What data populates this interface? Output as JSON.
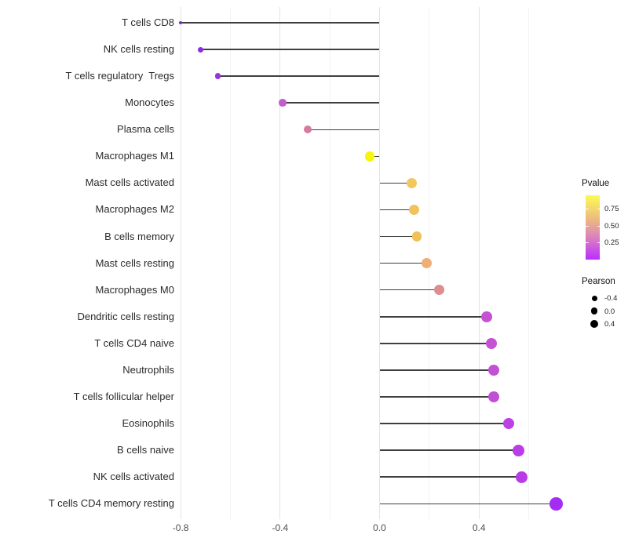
{
  "chart_data": {
    "type": "lollipop",
    "orientation": "horizontal",
    "title": "",
    "xlabel": "",
    "ylabel": "",
    "baseline": 0.0,
    "xlim": [
      -0.87,
      0.79
    ],
    "grid": "vertical-only",
    "x_axis": {
      "ticks": [
        -0.8,
        -0.4,
        0.0,
        0.4
      ],
      "tick_labels": [
        "-0.8",
        "-0.4",
        "0.0",
        "0.4"
      ],
      "minor_ticks": [
        -0.6,
        -0.2,
        0.2,
        0.6
      ]
    },
    "points": [
      {
        "label": "T cells CD8",
        "pearson": -0.8,
        "dot_color": "#7f25df",
        "dot_size": 4.5
      },
      {
        "label": "NK cells resting",
        "pearson": -0.72,
        "dot_color": "#8c2ce2",
        "dot_size": 7
      },
      {
        "label": "T cells regulatory  Tregs",
        "pearson": -0.65,
        "dot_color": "#9734dd",
        "dot_size": 7.5
      },
      {
        "label": "Monocytes",
        "pearson": -0.39,
        "dot_color": "#c25fc8",
        "dot_size": 9.5
      },
      {
        "label": "Plasma cells",
        "pearson": -0.29,
        "dot_color": "#d47b9e",
        "dot_size": 10
      },
      {
        "label": "Macrophages M1",
        "pearson": -0.04,
        "dot_color": "#f7f50d",
        "dot_size": 12.5
      },
      {
        "label": "Mast cells activated",
        "pearson": 0.13,
        "dot_color": "#f2c75e",
        "dot_size": 13
      },
      {
        "label": "Macrophages M2",
        "pearson": 0.14,
        "dot_color": "#f1c35c",
        "dot_size": 13
      },
      {
        "label": "B cells memory",
        "pearson": 0.15,
        "dot_color": "#f0c157",
        "dot_size": 12.5
      },
      {
        "label": "Mast cells resting",
        "pearson": 0.19,
        "dot_color": "#eeae76",
        "dot_size": 13.5
      },
      {
        "label": "Macrophages M0",
        "pearson": 0.24,
        "dot_color": "#dd8e91",
        "dot_size": 13.5
      },
      {
        "label": "Dendritic cells resting",
        "pearson": 0.43,
        "dot_color": "#c551d3",
        "dot_size": 14
      },
      {
        "label": "T cells CD4 naive",
        "pearson": 0.45,
        "dot_color": "#c453d3",
        "dot_size": 14
      },
      {
        "label": "Neutrophils",
        "pearson": 0.46,
        "dot_color": "#c250d5",
        "dot_size": 14.5
      },
      {
        "label": "T cells follicular helper",
        "pearson": 0.46,
        "dot_color": "#c14ed7",
        "dot_size": 14.5
      },
      {
        "label": "Eosinophils",
        "pearson": 0.52,
        "dot_color": "#bc41e2",
        "dot_size": 14.5
      },
      {
        "label": "B cells naive",
        "pearson": 0.56,
        "dot_color": "#ba3de5",
        "dot_size": 15
      },
      {
        "label": "NK cells activated",
        "pearson": 0.57,
        "dot_color": "#b93be6",
        "dot_size": 15
      },
      {
        "label": "T cells CD4 memory resting",
        "pearson": 0.71,
        "dot_color": "#a52df3",
        "dot_size": 16.5
      }
    ],
    "stem_color": "#3f3f3f",
    "legend_position": "right"
  },
  "legend": {
    "pvalue": {
      "title": "Pvalue",
      "tick_labels": [
        "0.75",
        "0.50",
        "0.25"
      ],
      "gradient_high": "#fcfa55",
      "gradient_low": "#ba2dfe"
    },
    "pearson": {
      "title": "Pearson",
      "items": [
        {
          "label": "-0.4",
          "size": 7
        },
        {
          "label": "0.0",
          "size": 8.5
        },
        {
          "label": "0.4",
          "size": 10.5
        }
      ],
      "dot_color": "#000000"
    }
  }
}
